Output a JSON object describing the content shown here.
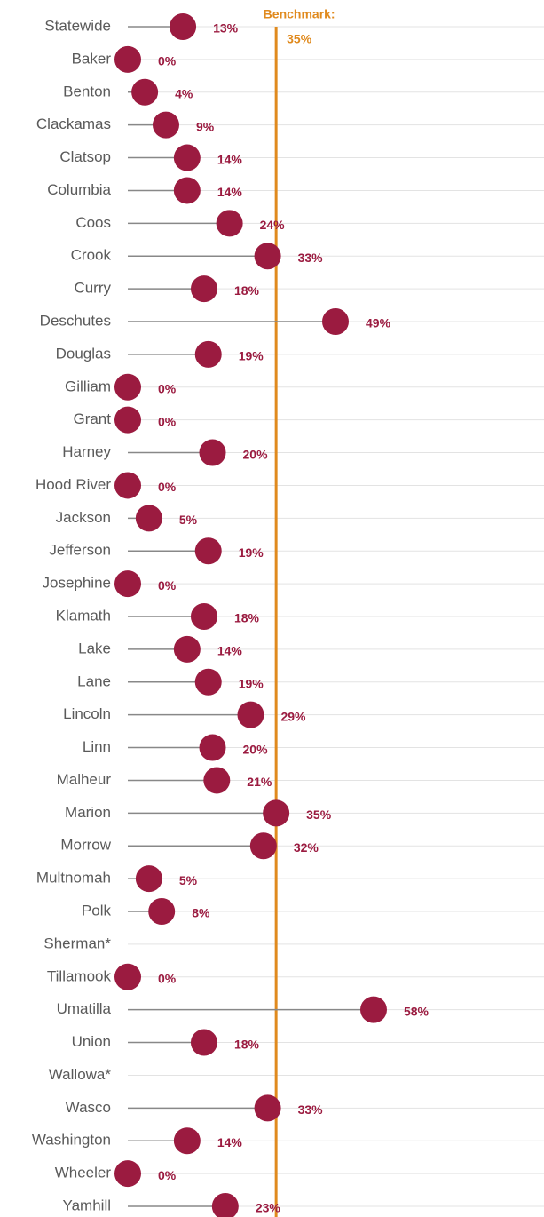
{
  "chart_data": {
    "type": "lollipop",
    "categories": [
      "Statewide",
      "Baker",
      "Benton",
      "Clackamas",
      "Clatsop",
      "Columbia",
      "Coos",
      "Crook",
      "Curry",
      "Deschutes",
      "Douglas",
      "Gilliam",
      "Grant",
      "Harney",
      "Hood River",
      "Jackson",
      "Jefferson",
      "Josephine",
      "Klamath",
      "Lake",
      "Lane",
      "Lincoln",
      "Linn",
      "Malheur",
      "Marion",
      "Morrow",
      "Multnomah",
      "Polk",
      "Sherman*",
      "Tillamook",
      "Umatilla",
      "Union",
      "Wallowa*",
      "Wasco",
      "Washington",
      "Wheeler",
      "Yamhill"
    ],
    "values": [
      13,
      0,
      4,
      9,
      14,
      14,
      24,
      33,
      18,
      49,
      19,
      0,
      0,
      20,
      0,
      5,
      19,
      0,
      18,
      14,
      19,
      29,
      20,
      21,
      35,
      32,
      5,
      8,
      null,
      0,
      58,
      18,
      null,
      33,
      14,
      0,
      23
    ],
    "value_labels": [
      "13%",
      "0%",
      "4%",
      "9%",
      "14%",
      "14%",
      "24%",
      "33%",
      "18%",
      "49%",
      "19%",
      "0%",
      "0%",
      "20%",
      "0%",
      "5%",
      "19%",
      "0%",
      "18%",
      "14%",
      "19%",
      "29%",
      "20%",
      "21%",
      "35%",
      "32%",
      "5%",
      "8%",
      null,
      "0%",
      "58%",
      "18%",
      null,
      "33%",
      "14%",
      "0%",
      "23%"
    ],
    "color": "#9b1b40",
    "xlim": [
      0,
      98
    ],
    "benchmark": {
      "label": "Benchmark:",
      "value": 35,
      "value_label": "35%",
      "color": "#e08a1e"
    }
  }
}
